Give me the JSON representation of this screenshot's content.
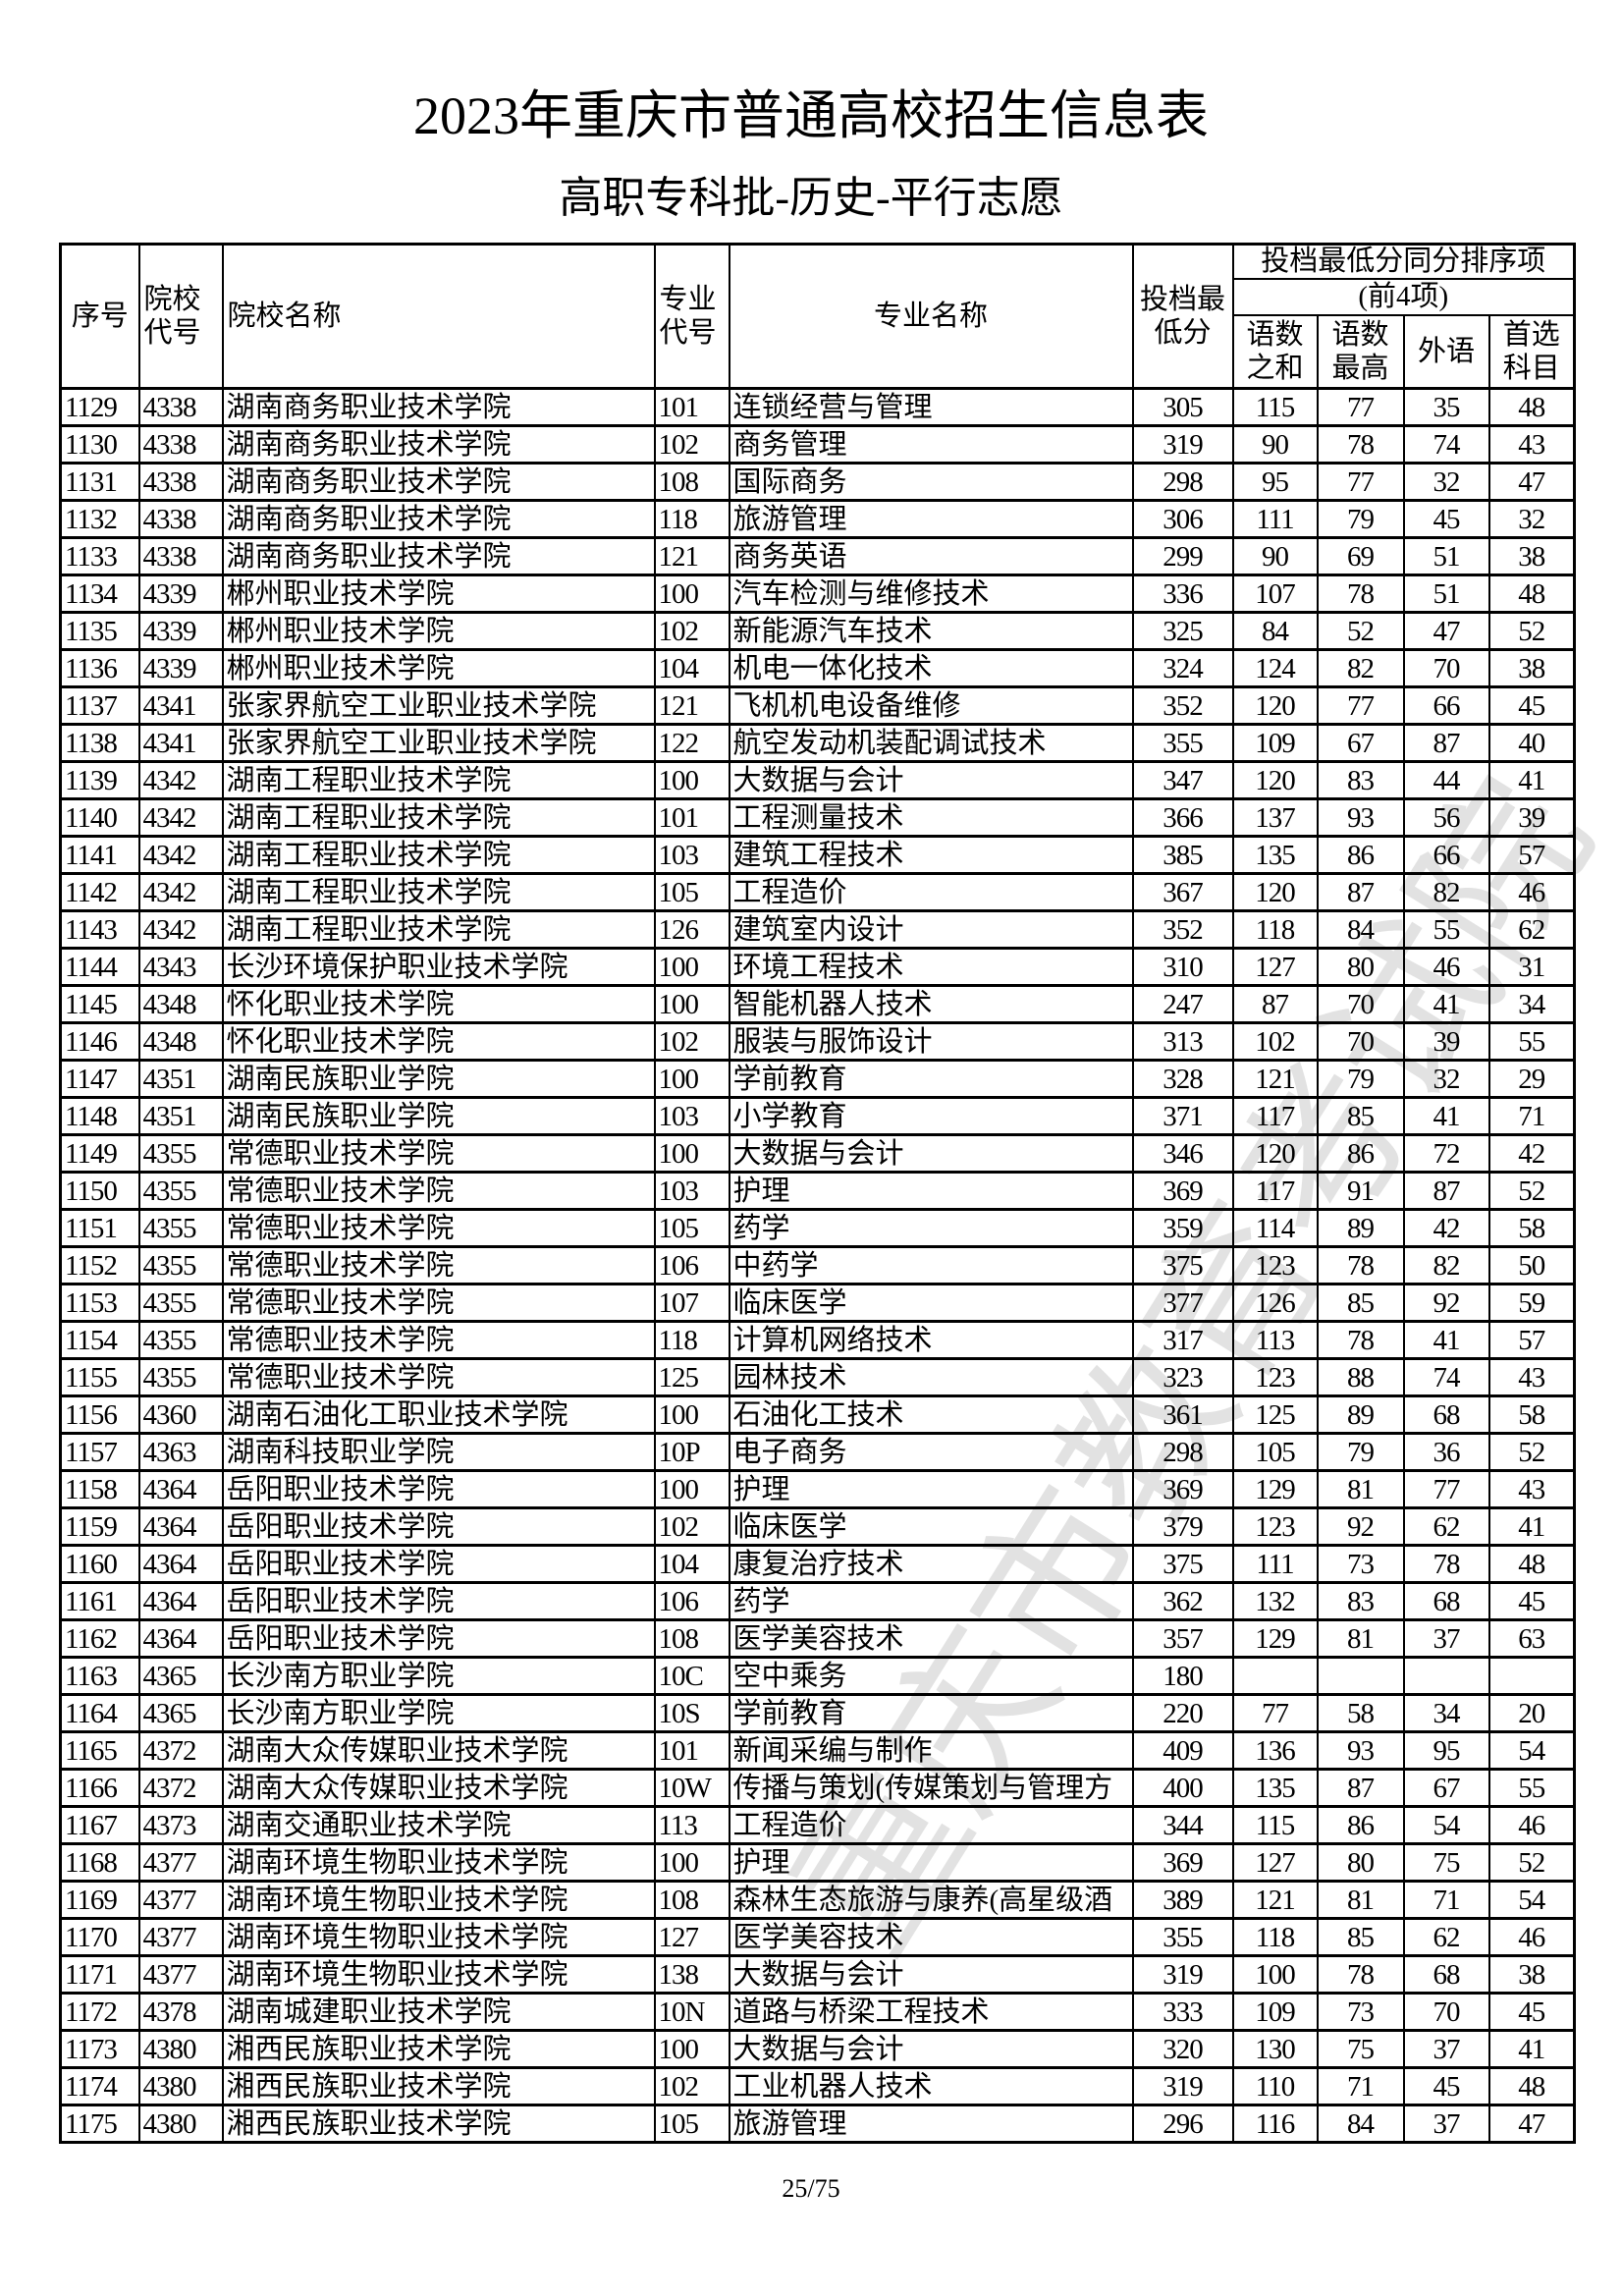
{
  "title": "2023年重庆市普通高校招生信息表",
  "subtitle": "高职专科批-历史-平行志愿",
  "watermark": "重庆市教育考试院",
  "page_number": "25/75",
  "headers": {
    "seq": "序号",
    "school_code": "院校代号",
    "school_name": "院校名称",
    "major_code": "专业代号",
    "major_name": "专业名称",
    "min_score": "投档最低分",
    "tiebreak_group": "投档最低分同分排序项",
    "tiebreak_note": "(前4项)",
    "sum_cm": "语数之和",
    "max_cm": "语数最高",
    "foreign": "外语",
    "first_subject": "首选科目"
  },
  "rows": [
    [
      "1129",
      "4338",
      "湖南商务职业技术学院",
      "101",
      "连锁经营与管理",
      "305",
      "115",
      "77",
      "35",
      "48"
    ],
    [
      "1130",
      "4338",
      "湖南商务职业技术学院",
      "102",
      "商务管理",
      "319",
      "90",
      "78",
      "74",
      "43"
    ],
    [
      "1131",
      "4338",
      "湖南商务职业技术学院",
      "108",
      "国际商务",
      "298",
      "95",
      "77",
      "32",
      "47"
    ],
    [
      "1132",
      "4338",
      "湖南商务职业技术学院",
      "118",
      "旅游管理",
      "306",
      "111",
      "79",
      "45",
      "32"
    ],
    [
      "1133",
      "4338",
      "湖南商务职业技术学院",
      "121",
      "商务英语",
      "299",
      "90",
      "69",
      "51",
      "38"
    ],
    [
      "1134",
      "4339",
      "郴州职业技术学院",
      "100",
      "汽车检测与维修技术",
      "336",
      "107",
      "78",
      "51",
      "48"
    ],
    [
      "1135",
      "4339",
      "郴州职业技术学院",
      "102",
      "新能源汽车技术",
      "325",
      "84",
      "52",
      "47",
      "52"
    ],
    [
      "1136",
      "4339",
      "郴州职业技术学院",
      "104",
      "机电一体化技术",
      "324",
      "124",
      "82",
      "70",
      "38"
    ],
    [
      "1137",
      "4341",
      "张家界航空工业职业技术学院",
      "121",
      "飞机机电设备维修",
      "352",
      "120",
      "77",
      "66",
      "45"
    ],
    [
      "1138",
      "4341",
      "张家界航空工业职业技术学院",
      "122",
      "航空发动机装配调试技术",
      "355",
      "109",
      "67",
      "87",
      "40"
    ],
    [
      "1139",
      "4342",
      "湖南工程职业技术学院",
      "100",
      "大数据与会计",
      "347",
      "120",
      "83",
      "44",
      "41"
    ],
    [
      "1140",
      "4342",
      "湖南工程职业技术学院",
      "101",
      "工程测量技术",
      "366",
      "137",
      "93",
      "56",
      "39"
    ],
    [
      "1141",
      "4342",
      "湖南工程职业技术学院",
      "103",
      "建筑工程技术",
      "385",
      "135",
      "86",
      "66",
      "57"
    ],
    [
      "1142",
      "4342",
      "湖南工程职业技术学院",
      "105",
      "工程造价",
      "367",
      "120",
      "87",
      "82",
      "46"
    ],
    [
      "1143",
      "4342",
      "湖南工程职业技术学院",
      "126",
      "建筑室内设计",
      "352",
      "118",
      "84",
      "55",
      "62"
    ],
    [
      "1144",
      "4343",
      "长沙环境保护职业技术学院",
      "100",
      "环境工程技术",
      "310",
      "127",
      "80",
      "46",
      "31"
    ],
    [
      "1145",
      "4348",
      "怀化职业技术学院",
      "100",
      "智能机器人技术",
      "247",
      "87",
      "70",
      "41",
      "34"
    ],
    [
      "1146",
      "4348",
      "怀化职业技术学院",
      "102",
      "服装与服饰设计",
      "313",
      "102",
      "70",
      "39",
      "55"
    ],
    [
      "1147",
      "4351",
      "湖南民族职业学院",
      "100",
      "学前教育",
      "328",
      "121",
      "79",
      "32",
      "29"
    ],
    [
      "1148",
      "4351",
      "湖南民族职业学院",
      "103",
      "小学教育",
      "371",
      "117",
      "85",
      "41",
      "71"
    ],
    [
      "1149",
      "4355",
      "常德职业技术学院",
      "100",
      "大数据与会计",
      "346",
      "120",
      "86",
      "72",
      "42"
    ],
    [
      "1150",
      "4355",
      "常德职业技术学院",
      "103",
      "护理",
      "369",
      "117",
      "91",
      "87",
      "52"
    ],
    [
      "1151",
      "4355",
      "常德职业技术学院",
      "105",
      "药学",
      "359",
      "114",
      "89",
      "42",
      "58"
    ],
    [
      "1152",
      "4355",
      "常德职业技术学院",
      "106",
      "中药学",
      "375",
      "123",
      "78",
      "82",
      "50"
    ],
    [
      "1153",
      "4355",
      "常德职业技术学院",
      "107",
      "临床医学",
      "377",
      "126",
      "85",
      "92",
      "59"
    ],
    [
      "1154",
      "4355",
      "常德职业技术学院",
      "118",
      "计算机网络技术",
      "317",
      "113",
      "78",
      "41",
      "57"
    ],
    [
      "1155",
      "4355",
      "常德职业技术学院",
      "125",
      "园林技术",
      "323",
      "123",
      "88",
      "74",
      "43"
    ],
    [
      "1156",
      "4360",
      "湖南石油化工职业技术学院",
      "100",
      "石油化工技术",
      "361",
      "125",
      "89",
      "68",
      "58"
    ],
    [
      "1157",
      "4363",
      "湖南科技职业学院",
      "10P",
      "电子商务",
      "298",
      "105",
      "79",
      "36",
      "52"
    ],
    [
      "1158",
      "4364",
      "岳阳职业技术学院",
      "100",
      "护理",
      "369",
      "129",
      "81",
      "77",
      "43"
    ],
    [
      "1159",
      "4364",
      "岳阳职业技术学院",
      "102",
      "临床医学",
      "379",
      "123",
      "92",
      "62",
      "41"
    ],
    [
      "1160",
      "4364",
      "岳阳职业技术学院",
      "104",
      "康复治疗技术",
      "375",
      "111",
      "73",
      "78",
      "48"
    ],
    [
      "1161",
      "4364",
      "岳阳职业技术学院",
      "106",
      "药学",
      "362",
      "132",
      "83",
      "68",
      "45"
    ],
    [
      "1162",
      "4364",
      "岳阳职业技术学院",
      "108",
      "医学美容技术",
      "357",
      "129",
      "81",
      "37",
      "63"
    ],
    [
      "1163",
      "4365",
      "长沙南方职业学院",
      "10C",
      "空中乘务",
      "180",
      "",
      "",
      "",
      ""
    ],
    [
      "1164",
      "4365",
      "长沙南方职业学院",
      "10S",
      "学前教育",
      "220",
      "77",
      "58",
      "34",
      "20"
    ],
    [
      "1165",
      "4372",
      "湖南大众传媒职业技术学院",
      "101",
      "新闻采编与制作",
      "409",
      "136",
      "93",
      "95",
      "54"
    ],
    [
      "1166",
      "4372",
      "湖南大众传媒职业技术学院",
      "10W",
      "传播与策划(传媒策划与管理方",
      "400",
      "135",
      "87",
      "67",
      "55"
    ],
    [
      "1167",
      "4373",
      "湖南交通职业技术学院",
      "113",
      "工程造价",
      "344",
      "115",
      "86",
      "54",
      "46"
    ],
    [
      "1168",
      "4377",
      "湖南环境生物职业技术学院",
      "100",
      "护理",
      "369",
      "127",
      "80",
      "75",
      "52"
    ],
    [
      "1169",
      "4377",
      "湖南环境生物职业技术学院",
      "108",
      "森林生态旅游与康养(高星级酒",
      "389",
      "121",
      "81",
      "71",
      "54"
    ],
    [
      "1170",
      "4377",
      "湖南环境生物职业技术学院",
      "127",
      "医学美容技术",
      "355",
      "118",
      "85",
      "62",
      "46"
    ],
    [
      "1171",
      "4377",
      "湖南环境生物职业技术学院",
      "138",
      "大数据与会计",
      "319",
      "100",
      "78",
      "68",
      "38"
    ],
    [
      "1172",
      "4378",
      "湖南城建职业技术学院",
      "10N",
      "道路与桥梁工程技术",
      "333",
      "109",
      "73",
      "70",
      "45"
    ],
    [
      "1173",
      "4380",
      "湘西民族职业技术学院",
      "100",
      "大数据与会计",
      "320",
      "130",
      "75",
      "37",
      "41"
    ],
    [
      "1174",
      "4380",
      "湘西民族职业技术学院",
      "102",
      "工业机器人技术",
      "319",
      "110",
      "71",
      "45",
      "48"
    ],
    [
      "1175",
      "4380",
      "湘西民族职业技术学院",
      "105",
      "旅游管理",
      "296",
      "116",
      "84",
      "37",
      "47"
    ]
  ]
}
